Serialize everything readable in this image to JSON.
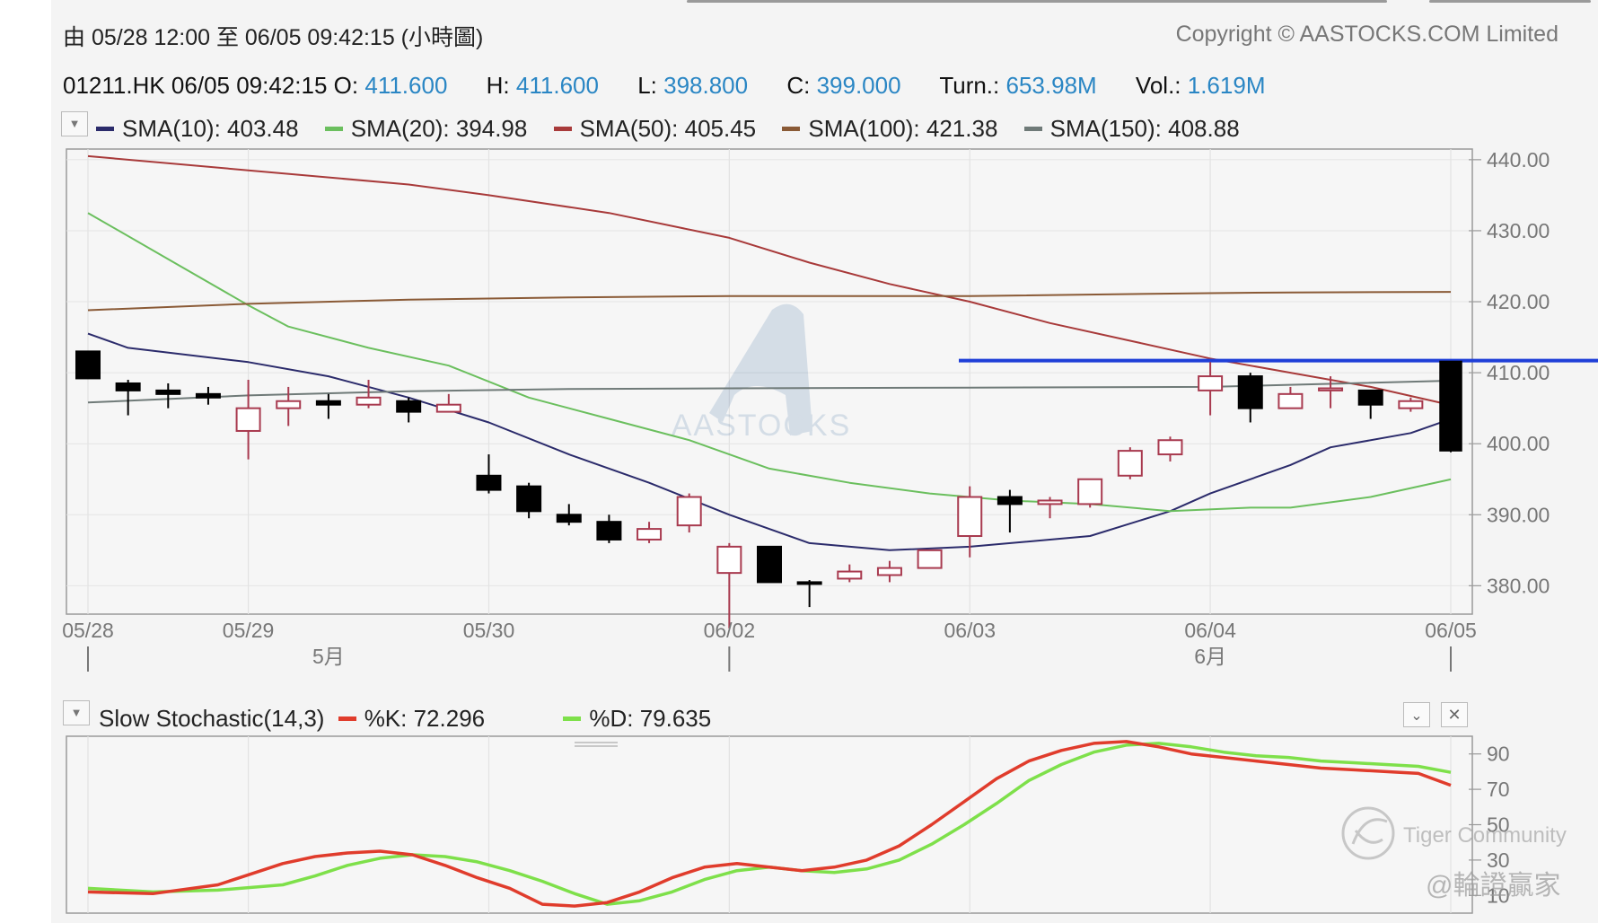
{
  "header": {
    "range_text": "由  05/28 12:00 至  06/05 09:42:15 (小時圖)",
    "copyright": "Copyright © AASTOCKS.COM Limited"
  },
  "quote": {
    "symbol_time": "01211.HK  06/05 09:42:15",
    "o_label": "O:",
    "o_value": "411.600",
    "h_label": "H:",
    "h_value": "411.600",
    "l_label": "L:",
    "l_value": "398.800",
    "c_label": "C:",
    "c_value": "399.000",
    "turn_label": "Turn.:",
    "turn_value": "653.98M",
    "vol_label": "Vol.:",
    "vol_value": "1.619M"
  },
  "sma_legend": [
    {
      "text": "SMA(10): 403.48",
      "color": "#2b2b6b"
    },
    {
      "text": "SMA(20): 394.98",
      "color": "#6bbf5e"
    },
    {
      "text": "SMA(50): 405.45",
      "color": "#a83a3a"
    },
    {
      "text": "SMA(100): 421.38",
      "color": "#8a5a36"
    },
    {
      "text": "SMA(150): 408.88",
      "color": "#6f7a78"
    }
  ],
  "stoch": {
    "title": "Slow Stochastic(14,3)",
    "k_text": "%K: 72.296",
    "k_color": "#e03c2c",
    "d_text": "%D: 79.635",
    "d_color": "#7ee04a"
  },
  "watermarks": {
    "logo_text": "AASTOCKS",
    "tiger": "Tiger Community",
    "author": "@輪證贏家"
  },
  "chart_data": [
    {
      "type": "candlestick",
      "title": "",
      "x_ticks": [
        "05/28",
        "05/29",
        "05/30",
        "06/02",
        "06/03",
        "06/04",
        "06/05"
      ],
      "month_labels": [
        "5月",
        "6月"
      ],
      "y_ticks": [
        440,
        430,
        420,
        410,
        400,
        390,
        380
      ],
      "y_tick_labels": [
        "440.00",
        "430.00",
        "420.00",
        "410.00",
        "400.00",
        "390.00",
        "380.00"
      ],
      "ylim": [
        376,
        441.5
      ],
      "reference_line": {
        "value": 411.7,
        "color": "#1f3fd8"
      },
      "up_color": "#a83a4f",
      "down_color": "#000000",
      "candles": [
        {
          "o": 413.0,
          "h": 413.0,
          "l": 409.2,
          "c": 409.2
        },
        {
          "o": 408.5,
          "h": 409.0,
          "l": 404.0,
          "c": 407.5
        },
        {
          "o": 407.5,
          "h": 408.5,
          "l": 405.0,
          "c": 407.0
        },
        {
          "o": 407.0,
          "h": 408.0,
          "l": 405.5,
          "c": 406.5
        },
        {
          "o": 401.8,
          "h": 409.0,
          "l": 397.8,
          "c": 405.0
        },
        {
          "o": 405.0,
          "h": 408.0,
          "l": 402.5,
          "c": 406.0
        },
        {
          "o": 406.0,
          "h": 407.0,
          "l": 403.5,
          "c": 405.5
        },
        {
          "o": 405.5,
          "h": 409.0,
          "l": 405.0,
          "c": 406.5
        },
        {
          "o": 406.0,
          "h": 406.5,
          "l": 403.0,
          "c": 404.5
        },
        {
          "o": 404.5,
          "h": 407.0,
          "l": 404.5,
          "c": 405.5
        },
        {
          "o": 395.5,
          "h": 398.5,
          "l": 393.0,
          "c": 393.5
        },
        {
          "o": 394.0,
          "h": 394.5,
          "l": 389.5,
          "c": 390.5
        },
        {
          "o": 390.0,
          "h": 391.5,
          "l": 388.5,
          "c": 389.0
        },
        {
          "o": 389.0,
          "h": 390.0,
          "l": 386.0,
          "c": 386.5
        },
        {
          "o": 386.5,
          "h": 389.0,
          "l": 386.0,
          "c": 388.0
        },
        {
          "o": 388.5,
          "h": 393.0,
          "l": 387.5,
          "c": 392.5
        },
        {
          "o": 381.8,
          "h": 386.0,
          "l": 374.0,
          "c": 385.5
        },
        {
          "o": 385.5,
          "h": 385.5,
          "l": 380.5,
          "c": 380.5
        },
        {
          "o": 380.5,
          "h": 380.8,
          "l": 377.0,
          "c": 380.3
        },
        {
          "o": 381.0,
          "h": 383.0,
          "l": 380.5,
          "c": 382.0
        },
        {
          "o": 381.5,
          "h": 383.5,
          "l": 380.5,
          "c": 382.5
        },
        {
          "o": 382.5,
          "h": 385.0,
          "l": 382.5,
          "c": 385.0
        },
        {
          "o": 387.0,
          "h": 394.0,
          "l": 384.0,
          "c": 392.5
        },
        {
          "o": 392.5,
          "h": 393.5,
          "l": 387.5,
          "c": 391.5
        },
        {
          "o": 391.5,
          "h": 392.5,
          "l": 389.5,
          "c": 392.0
        },
        {
          "o": 391.5,
          "h": 395.0,
          "l": 391.0,
          "c": 395.0
        },
        {
          "o": 395.5,
          "h": 399.5,
          "l": 395.0,
          "c": 399.0
        },
        {
          "o": 398.5,
          "h": 401.0,
          "l": 397.5,
          "c": 400.5
        },
        {
          "o": 407.5,
          "h": 411.5,
          "l": 404.0,
          "c": 409.5
        },
        {
          "o": 409.5,
          "h": 410.0,
          "l": 403.0,
          "c": 405.0
        },
        {
          "o": 405.0,
          "h": 408.0,
          "l": 405.0,
          "c": 407.0
        },
        {
          "o": 407.5,
          "h": 409.5,
          "l": 405.0,
          "c": 407.8
        },
        {
          "o": 407.5,
          "h": 407.5,
          "l": 403.5,
          "c": 405.5
        },
        {
          "o": 405.0,
          "h": 406.5,
          "l": 404.5,
          "c": 406.0
        },
        {
          "o": 411.6,
          "h": 411.6,
          "l": 398.8,
          "c": 399.0
        }
      ],
      "sma": [
        {
          "name": "SMA(10)",
          "color": "#2b2b6b",
          "points": [
            [
              0,
              415.5
            ],
            [
              1,
              413.5
            ],
            [
              4,
              411.5
            ],
            [
              6,
              409.5
            ],
            [
              8,
              406.5
            ],
            [
              10,
              403
            ],
            [
              12,
              398.5
            ],
            [
              14,
              394.5
            ],
            [
              16,
              390
            ],
            [
              18,
              386
            ],
            [
              20,
              385
            ],
            [
              22,
              385.5
            ],
            [
              24,
              386.5
            ],
            [
              25,
              387
            ],
            [
              27,
              390.5
            ],
            [
              28,
              393
            ],
            [
              30,
              397
            ],
            [
              31,
              399.5
            ],
            [
              33,
              401.5
            ],
            [
              34,
              403.48
            ]
          ]
        },
        {
          "name": "SMA(20)",
          "color": "#6bbf5e",
          "points": [
            [
              0,
              432.5
            ],
            [
              2,
              426
            ],
            [
              4,
              419.5
            ],
            [
              5,
              416.5
            ],
            [
              7,
              413.5
            ],
            [
              9,
              411
            ],
            [
              11,
              406.5
            ],
            [
              13,
              403.5
            ],
            [
              15,
              400.5
            ],
            [
              17,
              396.5
            ],
            [
              19,
              394.5
            ],
            [
              21,
              393
            ],
            [
              23,
              392
            ],
            [
              25,
              391.5
            ],
            [
              27,
              390.5
            ],
            [
              29,
              391
            ],
            [
              30,
              391
            ],
            [
              32,
              392.5
            ],
            [
              34,
              394.98
            ]
          ]
        },
        {
          "name": "SMA(50)",
          "color": "#a83a3a",
          "points": [
            [
              0,
              440.5
            ],
            [
              4,
              438.5
            ],
            [
              8,
              436.5
            ],
            [
              10,
              435
            ],
            [
              13,
              432.5
            ],
            [
              16,
              429
            ],
            [
              18,
              425.5
            ],
            [
              20,
              422.5
            ],
            [
              22,
              420
            ],
            [
              24,
              417
            ],
            [
              26,
              414.5
            ],
            [
              28,
              412
            ],
            [
              30,
              410
            ],
            [
              32,
              408
            ],
            [
              34,
              405.45
            ]
          ]
        },
        {
          "name": "SMA(100)",
          "color": "#8a5a36",
          "points": [
            [
              0,
              418.8
            ],
            [
              4,
              419.7
            ],
            [
              8,
              420.3
            ],
            [
              12,
              420.6
            ],
            [
              16,
              420.8
            ],
            [
              22,
              420.8
            ],
            [
              28,
              421.2
            ],
            [
              30,
              421.3
            ],
            [
              34,
              421.38
            ]
          ]
        },
        {
          "name": "SMA(150)",
          "color": "#6f7a78",
          "points": [
            [
              0,
              405.8
            ],
            [
              4,
              406.8
            ],
            [
              8,
              407.4
            ],
            [
              12,
              407.7
            ],
            [
              16,
              407.8
            ],
            [
              22,
              407.9
            ],
            [
              28,
              408.0
            ],
            [
              34,
              408.88
            ]
          ]
        }
      ]
    },
    {
      "type": "line",
      "title": "Slow Stochastic(14,3)",
      "y_ticks": [
        90,
        70,
        50,
        30,
        10
      ],
      "y_tick_labels": [
        "90",
        "70",
        "50",
        "30",
        "10"
      ],
      "ylim": [
        0,
        100
      ],
      "series": [
        {
          "name": "%K",
          "color": "#e03c2c",
          "points": [
            [
              0,
              12
            ],
            [
              2,
              11
            ],
            [
              4,
              16
            ],
            [
              5,
              22
            ],
            [
              6,
              28
            ],
            [
              7,
              32
            ],
            [
              8,
              34
            ],
            [
              9,
              35
            ],
            [
              10,
              33
            ],
            [
              11,
              27
            ],
            [
              12,
              20
            ],
            [
              13,
              14
            ],
            [
              14,
              5
            ],
            [
              15,
              4
            ],
            [
              16,
              6
            ],
            [
              17,
              12
            ],
            [
              18,
              20
            ],
            [
              19,
              26
            ],
            [
              20,
              28
            ],
            [
              21,
              26
            ],
            [
              22,
              24
            ],
            [
              23,
              26
            ],
            [
              24,
              30
            ],
            [
              25,
              38
            ],
            [
              26,
              50
            ],
            [
              27,
              63
            ],
            [
              28,
              76
            ],
            [
              29,
              86
            ],
            [
              30,
              92
            ],
            [
              31,
              96
            ],
            [
              32,
              97
            ],
            [
              33,
              94
            ],
            [
              34,
              90
            ],
            [
              35,
              88
            ],
            [
              36,
              86
            ],
            [
              37,
              84
            ],
            [
              38,
              82
            ],
            [
              39,
              81
            ],
            [
              40,
              80
            ],
            [
              41,
              79
            ],
            [
              42,
              72.3
            ]
          ]
        },
        {
          "name": "%D",
          "color": "#7ee04a",
          "points": [
            [
              0,
              14
            ],
            [
              2,
              12
            ],
            [
              4,
              13
            ],
            [
              6,
              16
            ],
            [
              7,
              21
            ],
            [
              8,
              27
            ],
            [
              9,
              31
            ],
            [
              10,
              33
            ],
            [
              11,
              32
            ],
            [
              12,
              29
            ],
            [
              13,
              24
            ],
            [
              14,
              18
            ],
            [
              15,
              11
            ],
            [
              16,
              5
            ],
            [
              17,
              7
            ],
            [
              18,
              12
            ],
            [
              19,
              19
            ],
            [
              20,
              24
            ],
            [
              21,
              26
            ],
            [
              22,
              24
            ],
            [
              23,
              23
            ],
            [
              24,
              25
            ],
            [
              25,
              30
            ],
            [
              26,
              39
            ],
            [
              27,
              50
            ],
            [
              28,
              62
            ],
            [
              29,
              75
            ],
            [
              30,
              84
            ],
            [
              31,
              91
            ],
            [
              32,
              95
            ],
            [
              33,
              96
            ],
            [
              34,
              94
            ],
            [
              35,
              91
            ],
            [
              36,
              89
            ],
            [
              37,
              88
            ],
            [
              38,
              86
            ],
            [
              39,
              85
            ],
            [
              40,
              84
            ],
            [
              41,
              83
            ],
            [
              42,
              79.6
            ]
          ]
        }
      ]
    }
  ]
}
